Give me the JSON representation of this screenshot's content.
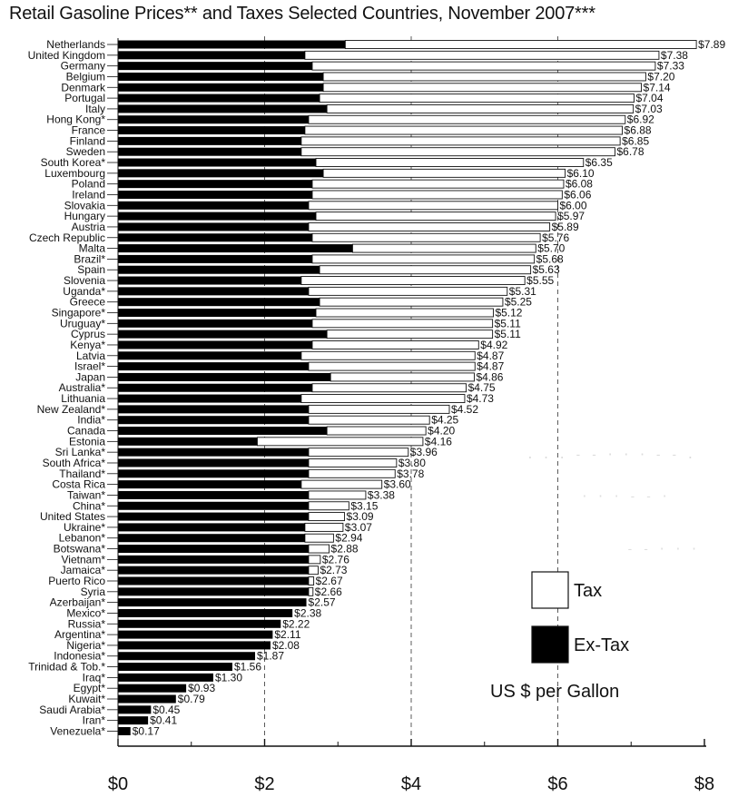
{
  "chart_data": {
    "type": "bar",
    "title": "Retail Gasoline Prices** and Taxes Selected Countries, November 2007***",
    "unit_label": "US $ per Gallon",
    "xlim": [
      0,
      8
    ],
    "x_ticks": [
      0,
      2,
      4,
      6,
      8
    ],
    "x_tick_labels": [
      "$0",
      "$2",
      "$4",
      "$6",
      "$8"
    ],
    "grid": "vertical dashed lines at $2, $4, $6",
    "legend": {
      "position": "right",
      "entries": [
        {
          "name": "Tax",
          "color": "#ffffff"
        },
        {
          "name": "Ex-Tax",
          "color": "#000000"
        }
      ]
    },
    "stacked": true,
    "series_names": [
      "Ex-Tax",
      "Tax"
    ],
    "bars": [
      {
        "country": "Netherlands",
        "ex_tax": 3.1,
        "total": 7.89,
        "label": "$7.89"
      },
      {
        "country": "United Kingdom",
        "ex_tax": 2.55,
        "total": 7.38,
        "label": "$7.38"
      },
      {
        "country": "Germany",
        "ex_tax": 2.65,
        "total": 7.33,
        "label": "$7.33"
      },
      {
        "country": "Belgium",
        "ex_tax": 2.8,
        "total": 7.2,
        "label": "$7.20"
      },
      {
        "country": "Denmark",
        "ex_tax": 2.8,
        "total": 7.14,
        "label": "$7.14"
      },
      {
        "country": "Portugal",
        "ex_tax": 2.75,
        "total": 7.04,
        "label": "$7.04"
      },
      {
        "country": "Italy",
        "ex_tax": 2.85,
        "total": 7.03,
        "label": "$7.03"
      },
      {
        "country": "Hong Kong*",
        "ex_tax": 2.6,
        "total": 6.92,
        "label": "$6.92"
      },
      {
        "country": "France",
        "ex_tax": 2.55,
        "total": 6.88,
        "label": "$6.88"
      },
      {
        "country": "Finland",
        "ex_tax": 2.5,
        "total": 6.85,
        "label": "$6.85"
      },
      {
        "country": "Sweden",
        "ex_tax": 2.5,
        "total": 6.78,
        "label": "$6.78"
      },
      {
        "country": "South Korea*",
        "ex_tax": 2.7,
        "total": 6.35,
        "label": "$6.35"
      },
      {
        "country": "Luxembourg",
        "ex_tax": 2.8,
        "total": 6.1,
        "label": "$6.10"
      },
      {
        "country": "Poland",
        "ex_tax": 2.65,
        "total": 6.08,
        "label": "$6.08"
      },
      {
        "country": "Ireland",
        "ex_tax": 2.65,
        "total": 6.06,
        "label": "$6.06"
      },
      {
        "country": "Slovakia",
        "ex_tax": 2.6,
        "total": 6.0,
        "label": "$6.00"
      },
      {
        "country": "Hungary",
        "ex_tax": 2.7,
        "total": 5.97,
        "label": "$5.97"
      },
      {
        "country": "Austria",
        "ex_tax": 2.6,
        "total": 5.89,
        "label": "$5.89"
      },
      {
        "country": "Czech Republic",
        "ex_tax": 2.65,
        "total": 5.76,
        "label": "$5.76"
      },
      {
        "country": "Malta",
        "ex_tax": 3.2,
        "total": 5.7,
        "label": "$5.70"
      },
      {
        "country": "Brazil*",
        "ex_tax": 2.65,
        "total": 5.68,
        "label": "$5.68"
      },
      {
        "country": "Spain",
        "ex_tax": 2.75,
        "total": 5.63,
        "label": "$5.63"
      },
      {
        "country": "Slovenia",
        "ex_tax": 2.5,
        "total": 5.55,
        "label": "$5.55"
      },
      {
        "country": "Uganda*",
        "ex_tax": 2.6,
        "total": 5.31,
        "label": "$5.31"
      },
      {
        "country": "Greece",
        "ex_tax": 2.75,
        "total": 5.25,
        "label": "$5.25"
      },
      {
        "country": "Singapore*",
        "ex_tax": 2.7,
        "total": 5.12,
        "label": "$5.12"
      },
      {
        "country": "Uruguay*",
        "ex_tax": 2.65,
        "total": 5.11,
        "label": "$5.11"
      },
      {
        "country": "Cyprus",
        "ex_tax": 2.85,
        "total": 5.11,
        "label": "$5.11"
      },
      {
        "country": "Kenya*",
        "ex_tax": 2.65,
        "total": 4.92,
        "label": "$4.92"
      },
      {
        "country": "Latvia",
        "ex_tax": 2.5,
        "total": 4.87,
        "label": "$4.87"
      },
      {
        "country": "Israel*",
        "ex_tax": 2.6,
        "total": 4.87,
        "label": "$4.87"
      },
      {
        "country": "Japan",
        "ex_tax": 2.9,
        "total": 4.86,
        "label": "$4.86"
      },
      {
        "country": "Australia*",
        "ex_tax": 2.65,
        "total": 4.75,
        "label": "$4.75"
      },
      {
        "country": "Lithuania",
        "ex_tax": 2.5,
        "total": 4.73,
        "label": "$4.73"
      },
      {
        "country": "New Zealand*",
        "ex_tax": 2.6,
        "total": 4.52,
        "label": "$4.52"
      },
      {
        "country": "India*",
        "ex_tax": 2.6,
        "total": 4.25,
        "label": "$4.25"
      },
      {
        "country": "Canada",
        "ex_tax": 2.85,
        "total": 4.2,
        "label": "$4.20"
      },
      {
        "country": "Estonia",
        "ex_tax": 1.9,
        "total": 4.16,
        "label": "$4.16"
      },
      {
        "country": "Sri Lanka*",
        "ex_tax": 2.6,
        "total": 3.96,
        "label": "$3.96"
      },
      {
        "country": "South Africa*",
        "ex_tax": 2.6,
        "total": 3.8,
        "label": "$3.80"
      },
      {
        "country": "Thailand*",
        "ex_tax": 2.6,
        "total": 3.78,
        "label": "$3.78"
      },
      {
        "country": "Costa Rica",
        "ex_tax": 2.5,
        "total": 3.6,
        "label": "$3.60"
      },
      {
        "country": "Taiwan*",
        "ex_tax": 2.6,
        "total": 3.38,
        "label": "$3.38"
      },
      {
        "country": "China*",
        "ex_tax": 2.6,
        "total": 3.15,
        "label": "$3.15"
      },
      {
        "country": "United States",
        "ex_tax": 2.6,
        "total": 3.09,
        "label": "$3.09"
      },
      {
        "country": "Ukraine*",
        "ex_tax": 2.55,
        "total": 3.07,
        "label": "$3.07"
      },
      {
        "country": "Lebanon*",
        "ex_tax": 2.55,
        "total": 2.94,
        "label": "$2.94"
      },
      {
        "country": "Botswana*",
        "ex_tax": 2.6,
        "total": 2.88,
        "label": "$2.88"
      },
      {
        "country": "Vietnam*",
        "ex_tax": 2.6,
        "total": 2.76,
        "label": "$2.76"
      },
      {
        "country": "Jamaica*",
        "ex_tax": 2.6,
        "total": 2.73,
        "label": "$2.73"
      },
      {
        "country": "Puerto Rico",
        "ex_tax": 2.6,
        "total": 2.67,
        "label": "$2.67"
      },
      {
        "country": "Syria",
        "ex_tax": 2.6,
        "total": 2.66,
        "label": "$2.66"
      },
      {
        "country": "Azerbaijan*",
        "ex_tax": 2.57,
        "total": 2.57,
        "label": "$2.57"
      },
      {
        "country": "Mexico*",
        "ex_tax": 2.38,
        "total": 2.38,
        "label": "$2.38"
      },
      {
        "country": "Russia*",
        "ex_tax": 2.22,
        "total": 2.22,
        "label": "$2.22"
      },
      {
        "country": "Argentina*",
        "ex_tax": 2.11,
        "total": 2.11,
        "label": "$2.11"
      },
      {
        "country": "Nigeria*",
        "ex_tax": 2.08,
        "total": 2.08,
        "label": "$2.08"
      },
      {
        "country": "Indonesia*",
        "ex_tax": 1.87,
        "total": 1.87,
        "label": "$1.87"
      },
      {
        "country": "Trinidad & Tob.*",
        "ex_tax": 1.56,
        "total": 1.56,
        "label": "$1.56"
      },
      {
        "country": "Iraq*",
        "ex_tax": 1.3,
        "total": 1.3,
        "label": "$1.30"
      },
      {
        "country": "Egypt*",
        "ex_tax": 0.93,
        "total": 0.93,
        "label": "$0.93"
      },
      {
        "country": "Kuwait*",
        "ex_tax": 0.79,
        "total": 0.79,
        "label": "$0.79"
      },
      {
        "country": "Saudi Arabia*",
        "ex_tax": 0.45,
        "total": 0.45,
        "label": "$0.45"
      },
      {
        "country": "Iran*",
        "ex_tax": 0.41,
        "total": 0.41,
        "label": "$0.41"
      },
      {
        "country": "Venezuela*",
        "ex_tax": 0.17,
        "total": 0.17,
        "label": "$0.17"
      }
    ]
  }
}
